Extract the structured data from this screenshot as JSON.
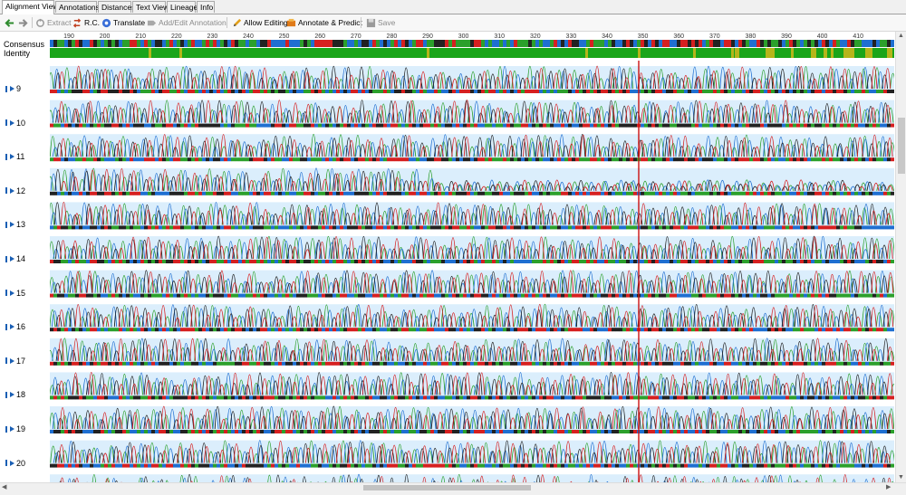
{
  "tabs": [
    {
      "label": "Alignment View",
      "active": true
    },
    {
      "label": "Annotations",
      "active": false
    },
    {
      "label": "Distances",
      "active": false
    },
    {
      "label": "Text View",
      "active": false
    },
    {
      "label": "Lineage",
      "active": false
    },
    {
      "label": "Info",
      "active": false
    }
  ],
  "toolbar": {
    "back_icon": "back-arrow-icon",
    "forward_icon": "forward-arrow-icon",
    "extract": "Extract",
    "rc": "R.C.",
    "translate": "Translate",
    "add_edit_annotation": "Add/Edit Annotation",
    "allow_editing": "Allow Editing",
    "annotate_predict": "Annotate & Predict",
    "save": "Save"
  },
  "header": {
    "consensus": "Consensus",
    "identity": "Identity"
  },
  "ruler_ticks": [
    "190",
    "200",
    "210",
    "220",
    "230",
    "240",
    "250",
    "260",
    "270",
    "280",
    "290",
    "300",
    "310",
    "320",
    "330",
    "340",
    "350",
    "360",
    "370",
    "380",
    "390",
    "400",
    "410"
  ],
  "sequences": [
    {
      "name": "9"
    },
    {
      "name": "10"
    },
    {
      "name": "11"
    },
    {
      "name": "12"
    },
    {
      "name": "13"
    },
    {
      "name": "14"
    },
    {
      "name": "15"
    },
    {
      "name": "16"
    },
    {
      "name": "17"
    },
    {
      "name": "18"
    },
    {
      "name": "19"
    },
    {
      "name": "20"
    }
  ],
  "colors": {
    "A": "#2ca02c",
    "C": "#1f6fd1",
    "G": "#222222",
    "T": "#d62020",
    "identity_full": "#1aa51a",
    "identity_partial": "#b5b51b",
    "row_bg": "#dbeefc"
  }
}
